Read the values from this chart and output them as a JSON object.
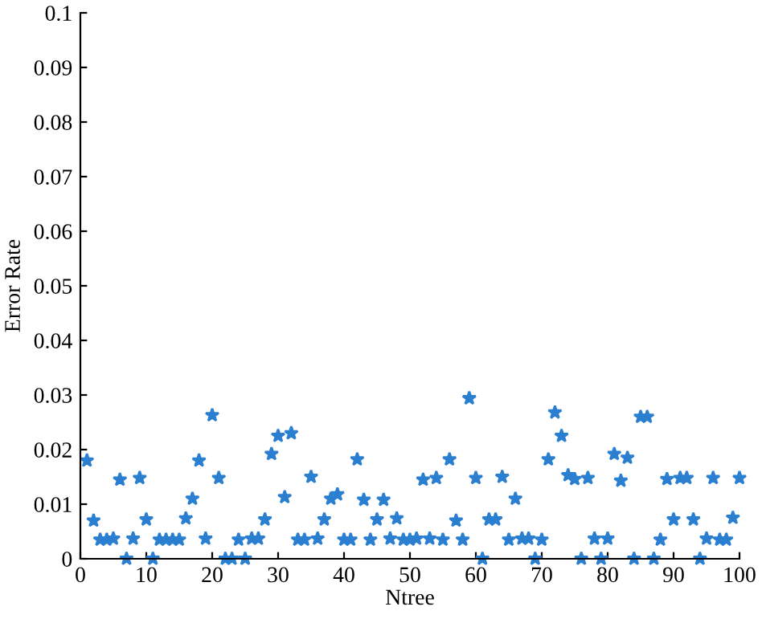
{
  "chart_data": {
    "type": "scatter",
    "xlabel": "Ntree",
    "ylabel": "Error Rate",
    "x": [
      1,
      2,
      3,
      4,
      5,
      6,
      7,
      8,
      9,
      10,
      11,
      12,
      13,
      14,
      15,
      16,
      17,
      18,
      19,
      20,
      21,
      22,
      23,
      24,
      25,
      26,
      27,
      28,
      29,
      30,
      31,
      32,
      33,
      34,
      35,
      36,
      37,
      38,
      39,
      40,
      41,
      42,
      43,
      44,
      45,
      46,
      47,
      48,
      49,
      50,
      51,
      52,
      53,
      54,
      55,
      56,
      57,
      58,
      59,
      60,
      61,
      62,
      63,
      64,
      65,
      66,
      67,
      68,
      69,
      70,
      71,
      72,
      73,
      74,
      75,
      76,
      77,
      78,
      79,
      80,
      81,
      82,
      83,
      84,
      85,
      86,
      87,
      88,
      89,
      90,
      91,
      92,
      93,
      94,
      95,
      96,
      97,
      98,
      99,
      100
    ],
    "series": [
      {
        "color": "#2b7fd0",
        "values": [
          0.018,
          0.007,
          0.0035,
          0.0035,
          0.0037,
          0.0145,
          0,
          0.0037,
          0.0148,
          0.0072,
          0,
          0.0035,
          0.0035,
          0.0035,
          0.0035,
          0.0074,
          0.011,
          0.018,
          0.0037,
          0.0263,
          0.0148,
          0,
          0,
          0.0035,
          0,
          0.0037,
          0.0037,
          0.0072,
          0.0192,
          0.0225,
          0.0113,
          0.023,
          0.0035,
          0.0035,
          0.015,
          0.0037,
          0.0072,
          0.011,
          0.0118,
          0.0035,
          0.0035,
          0.0182,
          0.0108,
          0.0035,
          0.0072,
          0.0108,
          0.0037,
          0.0074,
          0.0035,
          0.0035,
          0.0037,
          0.0145,
          0.0037,
          0.0148,
          0.0035,
          0.0182,
          0.007,
          0.0035,
          0.0294,
          0.0148,
          0,
          0.0072,
          0.0072,
          0.015,
          0.0035,
          0.011,
          0.0037,
          0.0037,
          0,
          0.0035,
          0.0182,
          0.0268,
          0.0225,
          0.0153,
          0.0146,
          0,
          0.0148,
          0.0037,
          0,
          0.0037,
          0.0192,
          0.0143,
          0.0185,
          0,
          0.026,
          0.026,
          0,
          0.0035,
          0.0146,
          0.0072,
          0.0148,
          0.0148,
          0.0072,
          0,
          0.0037,
          0.0148,
          0.0035,
          0.0035,
          0.0075,
          0.0148
        ]
      }
    ],
    "xlim": [
      0,
      100
    ],
    "xticks": [
      0,
      10,
      20,
      30,
      40,
      50,
      60,
      70,
      80,
      90,
      100
    ],
    "ylim": [
      0,
      0.1
    ],
    "yticks": [
      0,
      0.01,
      0.02,
      0.03,
      0.04,
      0.05,
      0.06,
      0.07,
      0.08,
      0.09,
      0.1
    ],
    "marker": "star",
    "grid": false
  }
}
